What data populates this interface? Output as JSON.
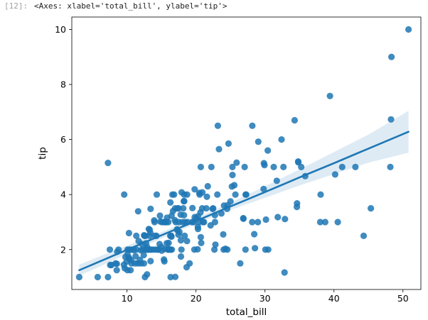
{
  "cell": {
    "prompt": "[12]:",
    "output": "<Axes: xlabel='total_bill', ylabel='tip'>"
  },
  "colors": {
    "point": "#1f77b4",
    "line": "#1f77b4",
    "band": "#1f77b4",
    "axes": "#000000"
  },
  "chart_data": {
    "type": "scatter",
    "title": "",
    "xlabel": "total_bill",
    "ylabel": "tip",
    "xlim": [
      2.0,
      52.6
    ],
    "ylim": [
      0.55,
      10.45
    ],
    "xticks": [
      10,
      20,
      30,
      40,
      50
    ],
    "yticks": [
      2,
      4,
      6,
      8,
      10
    ],
    "grid": false,
    "legend": null,
    "regression": {
      "x": [
        3.07,
        7.0,
        10.0,
        15.0,
        20.0,
        25.0,
        30.0,
        35.0,
        40.0,
        45.0,
        50.81
      ],
      "y": [
        1.25,
        1.67,
        1.99,
        2.52,
        3.04,
        3.57,
        4.09,
        4.62,
        5.14,
        5.67,
        6.28
      ],
      "ci_low": [
        1.05,
        1.49,
        1.84,
        2.4,
        2.94,
        3.44,
        3.88,
        4.33,
        4.74,
        5.16,
        5.52
      ],
      "ci_high": [
        1.45,
        1.85,
        2.14,
        2.64,
        3.14,
        3.7,
        4.3,
        4.91,
        5.54,
        6.18,
        7.04
      ]
    },
    "points": [
      [
        3.07,
        1.0
      ],
      [
        5.75,
        1.0
      ],
      [
        7.25,
        1.0
      ],
      [
        7.25,
        5.15
      ],
      [
        7.51,
        2.0
      ],
      [
        7.56,
        1.44
      ],
      [
        7.74,
        1.44
      ],
      [
        8.35,
        1.5
      ],
      [
        8.51,
        1.25
      ],
      [
        8.52,
        1.48
      ],
      [
        8.58,
        1.92
      ],
      [
        8.77,
        2.0
      ],
      [
        9.55,
        1.45
      ],
      [
        9.6,
        4.0
      ],
      [
        9.68,
        1.32
      ],
      [
        9.78,
        1.73
      ],
      [
        9.94,
        1.56
      ],
      [
        10.07,
        1.83
      ],
      [
        10.07,
        1.25
      ],
      [
        10.09,
        2.0
      ],
      [
        10.27,
        1.71
      ],
      [
        10.29,
        2.6
      ],
      [
        10.33,
        1.67
      ],
      [
        10.34,
        2.0
      ],
      [
        10.51,
        1.25
      ],
      [
        10.59,
        1.61
      ],
      [
        10.63,
        2.0
      ],
      [
        10.65,
        1.5
      ],
      [
        11.02,
        1.98
      ],
      [
        11.17,
        1.5
      ],
      [
        11.24,
        1.76
      ],
      [
        11.35,
        2.5
      ],
      [
        11.38,
        2.0
      ],
      [
        11.59,
        1.5
      ],
      [
        11.61,
        3.39
      ],
      [
        11.69,
        2.31
      ],
      [
        11.87,
        1.63
      ],
      [
        12.02,
        1.97
      ],
      [
        12.03,
        1.5
      ],
      [
        12.16,
        2.2
      ],
      [
        12.26,
        2.0
      ],
      [
        12.43,
        1.8
      ],
      [
        12.46,
        1.5
      ],
      [
        12.48,
        2.52
      ],
      [
        12.54,
        2.5
      ],
      [
        12.6,
        1.0
      ],
      [
        12.66,
        2.5
      ],
      [
        12.69,
        2.0
      ],
      [
        12.74,
        2.01
      ],
      [
        12.76,
        2.23
      ],
      [
        12.9,
        1.1
      ],
      [
        12.9,
        2.1
      ],
      [
        13.0,
        2.0
      ],
      [
        13.03,
        2.0
      ],
      [
        13.13,
        2.0
      ],
      [
        13.16,
        2.75
      ],
      [
        13.27,
        2.5
      ],
      [
        13.28,
        2.72
      ],
      [
        13.37,
        2.0
      ],
      [
        13.39,
        2.61
      ],
      [
        13.42,
        3.48
      ],
      [
        13.42,
        1.58
      ],
      [
        13.51,
        2.0
      ],
      [
        13.81,
        2.0
      ],
      [
        13.94,
        3.06
      ],
      [
        14.0,
        3.0
      ],
      [
        14.07,
        2.5
      ],
      [
        14.15,
        2.0
      ],
      [
        14.26,
        2.5
      ],
      [
        14.31,
        4.0
      ],
      [
        14.48,
        2.0
      ],
      [
        14.52,
        2.0
      ],
      [
        14.73,
        2.2
      ],
      [
        14.78,
        3.23
      ],
      [
        14.83,
        3.02
      ],
      [
        15.01,
        2.09
      ],
      [
        15.04,
        1.96
      ],
      [
        15.06,
        3.0
      ],
      [
        15.36,
        1.64
      ],
      [
        15.38,
        3.0
      ],
      [
        15.42,
        1.57
      ],
      [
        15.48,
        2.02
      ],
      [
        15.53,
        3.0
      ],
      [
        15.69,
        3.0
      ],
      [
        15.77,
        2.23
      ],
      [
        15.81,
        3.16
      ],
      [
        15.95,
        2.0
      ],
      [
        15.98,
        2.03
      ],
      [
        15.98,
        3.0
      ],
      [
        16.0,
        2.0
      ],
      [
        16.04,
        2.24
      ],
      [
        16.21,
        2.0
      ],
      [
        16.27,
        2.5
      ],
      [
        16.29,
        3.71
      ],
      [
        16.31,
        2.0
      ],
      [
        16.32,
        1.0
      ],
      [
        16.4,
        2.5
      ],
      [
        16.45,
        2.47
      ],
      [
        16.47,
        3.23
      ],
      [
        16.49,
        2.0
      ],
      [
        16.58,
        4.0
      ],
      [
        16.66,
        3.4
      ],
      [
        16.82,
        4.0
      ],
      [
        16.93,
        3.07
      ],
      [
        16.97,
        3.5
      ],
      [
        16.99,
        1.01
      ],
      [
        17.07,
        3.0
      ],
      [
        17.26,
        2.74
      ],
      [
        17.29,
        2.71
      ],
      [
        17.31,
        3.5
      ],
      [
        17.46,
        2.54
      ],
      [
        17.47,
        3.5
      ],
      [
        17.51,
        3.0
      ],
      [
        17.59,
        2.64
      ],
      [
        17.78,
        3.27
      ],
      [
        17.81,
        2.34
      ],
      [
        17.82,
        1.75
      ],
      [
        17.89,
        2.0
      ],
      [
        17.92,
        4.08
      ],
      [
        18.04,
        3.0
      ],
      [
        18.15,
        3.5
      ],
      [
        18.24,
        3.76
      ],
      [
        18.26,
        3.25
      ],
      [
        18.28,
        4.0
      ],
      [
        18.29,
        3.76
      ],
      [
        18.35,
        2.5
      ],
      [
        18.43,
        3.0
      ],
      [
        18.64,
        1.36
      ],
      [
        18.69,
        2.31
      ],
      [
        18.71,
        4.0
      ],
      [
        18.78,
        3.0
      ],
      [
        19.08,
        1.5
      ],
      [
        19.44,
        3.0
      ],
      [
        19.49,
        3.51
      ],
      [
        19.65,
        3.0
      ],
      [
        19.77,
        2.0
      ],
      [
        19.81,
        4.19
      ],
      [
        19.82,
        3.18
      ],
      [
        20.08,
        3.15
      ],
      [
        20.23,
        2.01
      ],
      [
        20.27,
        2.83
      ],
      [
        20.29,
        2.75
      ],
      [
        20.29,
        3.21
      ],
      [
        20.45,
        3.0
      ],
      [
        20.49,
        4.06
      ],
      [
        20.53,
        4.0
      ],
      [
        20.65,
        3.35
      ],
      [
        20.69,
        2.45
      ],
      [
        20.69,
        5.0
      ],
      [
        20.76,
        2.24
      ],
      [
        20.9,
        3.5
      ],
      [
        20.92,
        4.08
      ],
      [
        21.01,
        3.0
      ],
      [
        21.16,
        3.0
      ],
      [
        21.5,
        3.5
      ],
      [
        21.58,
        3.92
      ],
      [
        21.7,
        4.3
      ],
      [
        22.12,
        2.88
      ],
      [
        22.23,
        5.0
      ],
      [
        22.42,
        3.48
      ],
      [
        22.49,
        3.5
      ],
      [
        22.67,
        2.0
      ],
      [
        22.75,
        3.25
      ],
      [
        22.76,
        3.0
      ],
      [
        22.82,
        2.18
      ],
      [
        23.1,
        4.0
      ],
      [
        23.17,
        6.5
      ],
      [
        23.33,
        5.65
      ],
      [
        23.68,
        3.31
      ],
      [
        23.95,
        2.55
      ],
      [
        24.01,
        2.0
      ],
      [
        24.06,
        3.6
      ],
      [
        24.27,
        2.03
      ],
      [
        24.52,
        3.48
      ],
      [
        24.55,
        2.0
      ],
      [
        24.59,
        3.61
      ],
      [
        24.71,
        5.85
      ],
      [
        25.0,
        3.75
      ],
      [
        25.21,
        4.29
      ],
      [
        25.28,
        5.0
      ],
      [
        25.29,
        4.71
      ],
      [
        25.56,
        4.34
      ],
      [
        25.71,
        4.0
      ],
      [
        25.89,
        5.16
      ],
      [
        26.41,
        1.5
      ],
      [
        26.86,
        3.14
      ],
      [
        26.88,
        3.12
      ],
      [
        27.05,
        5.0
      ],
      [
        27.18,
        2.0
      ],
      [
        27.2,
        4.0
      ],
      [
        27.28,
        4.0
      ],
      [
        28.15,
        3.0
      ],
      [
        28.17,
        6.5
      ],
      [
        28.44,
        2.56
      ],
      [
        28.55,
        2.05
      ],
      [
        28.97,
        3.0
      ],
      [
        29.03,
        5.92
      ],
      [
        29.8,
        4.2
      ],
      [
        29.85,
        5.14
      ],
      [
        29.93,
        5.07
      ],
      [
        30.06,
        2.0
      ],
      [
        30.14,
        3.09
      ],
      [
        30.4,
        5.6
      ],
      [
        30.46,
        2.0
      ],
      [
        31.27,
        5.0
      ],
      [
        31.71,
        4.5
      ],
      [
        31.85,
        3.18
      ],
      [
        32.4,
        6.0
      ],
      [
        32.68,
        5.0
      ],
      [
        32.83,
        1.17
      ],
      [
        32.9,
        3.11
      ],
      [
        34.3,
        6.7
      ],
      [
        34.63,
        3.55
      ],
      [
        34.65,
        3.68
      ],
      [
        34.81,
        5.2
      ],
      [
        34.83,
        5.17
      ],
      [
        35.26,
        5.0
      ],
      [
        35.83,
        4.67
      ],
      [
        38.01,
        3.0
      ],
      [
        38.07,
        4.0
      ],
      [
        38.73,
        3.0
      ],
      [
        39.42,
        7.58
      ],
      [
        40.17,
        4.73
      ],
      [
        40.55,
        3.0
      ],
      [
        41.19,
        5.0
      ],
      [
        43.11,
        5.0
      ],
      [
        44.3,
        2.5
      ],
      [
        45.35,
        3.5
      ],
      [
        48.17,
        5.0
      ],
      [
        48.27,
        6.73
      ],
      [
        48.33,
        9.0
      ],
      [
        50.81,
        10.0
      ]
    ]
  }
}
